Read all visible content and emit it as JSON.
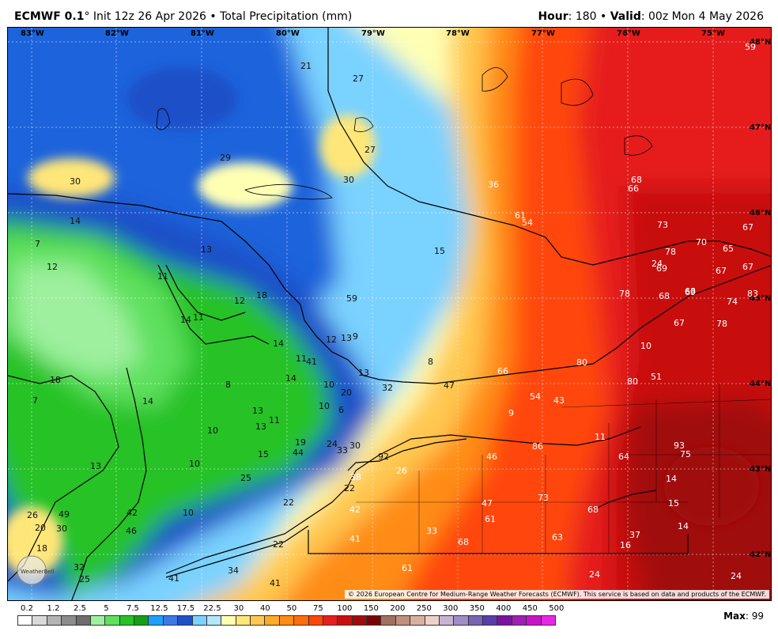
{
  "header": {
    "model": "ECMWF 0.1",
    "init": "° Init 12z 26 Apr 2026",
    "product": " • Total Precipitation (mm)",
    "hour_label": "Hour",
    "hour_value": ": 180 • ",
    "valid_label": "Valid",
    "valid_value": ": 00z Mon 4 May 2026"
  },
  "longitudes": [
    "83°W",
    "82°W",
    "81°W",
    "80°W",
    "79°W",
    "78°W",
    "77°W",
    "76°W",
    "75°W"
  ],
  "latitudes": [
    "48°N",
    "47°N",
    "46°N",
    "45°N",
    "44°N",
    "43°N",
    "42°N"
  ],
  "point_values": [
    "59",
    "21",
    "27",
    "29",
    "30",
    "30",
    "27",
    "36",
    "68",
    "66",
    "61",
    "54",
    "73",
    "70",
    "67",
    "65",
    "67",
    "78",
    "69",
    "68",
    "67",
    "24",
    "15",
    "13",
    "14",
    "7",
    "12",
    "11",
    "12",
    "18",
    "59",
    "78",
    "68",
    "69",
    "74",
    "83",
    "67",
    "78",
    "10",
    "14",
    "11",
    "14",
    "12",
    "13",
    "9",
    "11",
    "41",
    "8",
    "14",
    "13",
    "10",
    "20",
    "32",
    "47",
    "66",
    "80",
    "80",
    "51",
    "54",
    "43",
    "9",
    "8",
    "13",
    "11",
    "13",
    "10",
    "10",
    "6",
    "7",
    "18",
    "14",
    "13",
    "19",
    "24",
    "33",
    "30",
    "92",
    "93",
    "75",
    "64",
    "11",
    "10",
    "15",
    "44",
    "46",
    "86",
    "14",
    "25",
    "38",
    "26",
    "22",
    "22",
    "49",
    "42",
    "47",
    "61",
    "73",
    "68",
    "15",
    "14",
    "10",
    "42",
    "46",
    "41",
    "33",
    "68",
    "63",
    "37",
    "16",
    "18",
    "32",
    "25",
    "22",
    "34",
    "41",
    "41",
    "61",
    "24",
    "24",
    "26",
    "20",
    "30"
  ],
  "legend": {
    "values": [
      "0.2",
      "1.2",
      "2.5",
      "5",
      "7.5",
      "12.5",
      "17.5",
      "22.5",
      "30",
      "40",
      "50",
      "75",
      "100",
      "150",
      "200",
      "250",
      "300",
      "350",
      "400",
      "450",
      "500"
    ],
    "colors": [
      "#ffffff",
      "#d9d9d9",
      "#b3b3b3",
      "#8c8c8c",
      "#6e6e6e",
      "#9ef09e",
      "#5fe05f",
      "#26c226",
      "#14a014",
      "#1ea0ff",
      "#3c78e6",
      "#1e50c8",
      "#7ad2ff",
      "#b4e6ff",
      "#ffffb4",
      "#ffe678",
      "#ffc850",
      "#ffaa28",
      "#ff8c14",
      "#ff6e0a",
      "#ff460a",
      "#e61e1e",
      "#c80f0f",
      "#a00a0a",
      "#780505",
      "#a07060",
      "#c09080",
      "#d8b0a0",
      "#ecd2c8",
      "#c8b4d2",
      "#a08cc8",
      "#7864b4",
      "#5a3caa",
      "#7814a0",
      "#a01eb4",
      "#c814c8",
      "#e628e6"
    ],
    "max_label": "Max",
    "max_value": ": 99"
  },
  "copyright": "© 2026 European Centre for Medium-Range Weather Forecasts (ECMWF). This service is based on data and products of the ECMWF.",
  "logo_text": "WeatherBell"
}
